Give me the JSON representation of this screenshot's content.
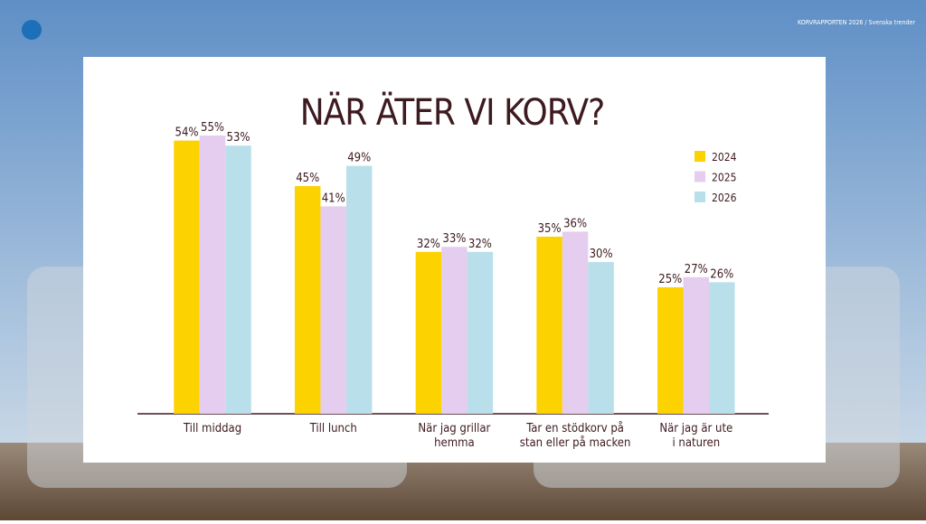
{
  "header": {
    "report": "KORVRAPPORTEN 2026 / Svenska trender"
  },
  "chart_data": {
    "type": "bar",
    "title": "NÄR ÄTER VI KORV?",
    "categories": [
      "Till middag",
      "Till lunch",
      "När jag grillar\nhemma",
      "Tar en stödkorv på\nstan eller på macken",
      "När jag är ute\ni naturen"
    ],
    "series": [
      {
        "name": "2024",
        "color": "#fcd200",
        "values": [
          54,
          45,
          32,
          35,
          25
        ],
        "value_labels": [
          "54%",
          "45%",
          "32%",
          "35%",
          "25%"
        ]
      },
      {
        "name": "2025",
        "color": "#e4cdee",
        "values": [
          55,
          41,
          33,
          36,
          27
        ],
        "value_labels": [
          "55%",
          "41%",
          "33%",
          "36%",
          "27%"
        ]
      },
      {
        "name": "2026",
        "color": "#b9dfeb",
        "values": [
          53,
          49,
          32,
          30,
          26
        ],
        "value_labels": [
          "53%",
          "49%",
          "32%",
          "30%",
          "26%"
        ]
      }
    ],
    "legend": "top-right"
  }
}
